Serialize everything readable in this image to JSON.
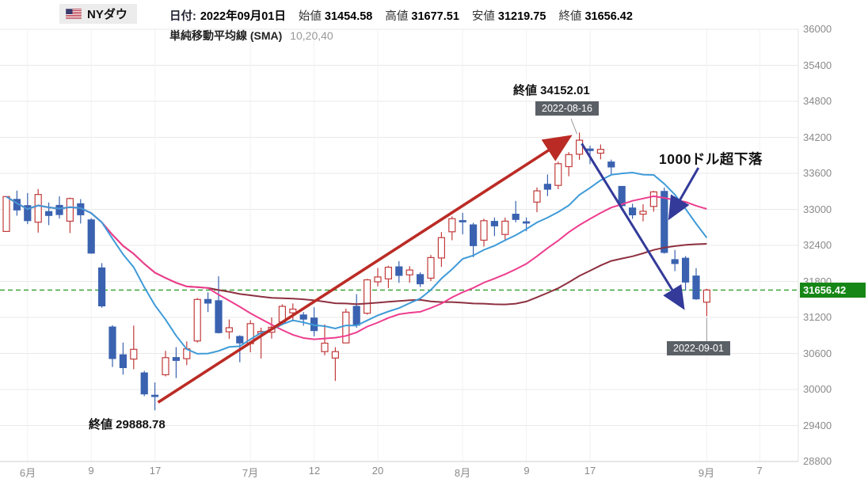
{
  "header": {
    "title": "NYダウ",
    "date_label": "日付:",
    "date_value": "2022年09月01日",
    "ohlc": [
      {
        "label": "始値",
        "value": "31454.58"
      },
      {
        "label": "高値",
        "value": "31677.51"
      },
      {
        "label": "安値",
        "value": "31219.75"
      },
      {
        "label": "終値",
        "value": "31656.42"
      }
    ],
    "sma_label": "単純移動平均線 (SMA)",
    "sma_values": "10,20,40"
  },
  "annotations": {
    "peak_label": "終値 34152.01",
    "peak_date": "2022-08-16",
    "bottom_label": "終値 29888.78",
    "last_date": "2022-09-01",
    "drop_note": "1000ドル超下落",
    "last_price_label": "31656.42"
  },
  "colors": {
    "up_candle": "#c23b3b",
    "down_candle": "#3a62b0",
    "sma10": "#3f9bd8",
    "sma20": "#ee3d8e",
    "sma40": "#8e3040",
    "last_price_line": "#2f9e2f",
    "last_price_badge_bg": "#168716",
    "date_badge_bg": "#5b6066",
    "up_arrow": "#bb2b25",
    "down_arrow": "#333a99",
    "grid": "#e8e8e8",
    "axis_text": "#8a8a8a"
  },
  "chart_data": {
    "type": "candlestick",
    "title": "NYダウ 日足 (2022年6月〜9月)",
    "ylim": [
      28800,
      36000
    ],
    "y_ticks": [
      36000,
      35400,
      34800,
      34200,
      33600,
      33000,
      32400,
      31800,
      31200,
      30600,
      30000,
      29400,
      28800
    ],
    "x_ticks": [
      {
        "label": "6月",
        "i": 2
      },
      {
        "label": "9",
        "i": 8
      },
      {
        "label": "17",
        "i": 14
      },
      {
        "label": "7月",
        "i": 23
      },
      {
        "label": "12",
        "i": 29
      },
      {
        "label": "20",
        "i": 35
      },
      {
        "label": "8月",
        "i": 43
      },
      {
        "label": "9",
        "i": 49
      },
      {
        "label": "17",
        "i": 55
      },
      {
        "label": "9月",
        "i": 66
      },
      {
        "label": "7",
        "i": 71
      }
    ],
    "sma_periods": [
      10,
      20,
      40
    ],
    "last_close_line": 31656.42,
    "grid": true,
    "legend": "none",
    "candle_fields": [
      "date",
      "open",
      "high",
      "low",
      "close"
    ],
    "candles": [
      [
        "05-27",
        32631,
        33213,
        32629,
        33213
      ],
      [
        "05-31",
        33166,
        33313,
        32894,
        32990
      ],
      [
        "06-01",
        33062,
        33272,
        32755,
        32813
      ],
      [
        "06-02",
        32787,
        33339,
        32612,
        33248
      ],
      [
        "06-03",
        32963,
        33115,
        32737,
        32899
      ],
      [
        "06-06",
        33066,
        33216,
        32848,
        32915
      ],
      [
        "06-07",
        32803,
        33196,
        32606,
        33180
      ],
      [
        "06-08",
        33093,
        33171,
        32764,
        32910
      ],
      [
        "06-09",
        32825,
        32855,
        32260,
        32272
      ],
      [
        "06-10",
        32024,
        32104,
        31361,
        31392
      ],
      [
        "06-13",
        31041,
        31071,
        30374,
        30516
      ],
      [
        "06-14",
        30578,
        30780,
        30248,
        30364
      ],
      [
        "06-15",
        30506,
        31064,
        30336,
        30668
      ],
      [
        "06-16",
        30276,
        30310,
        29888,
        29927
      ],
      [
        "06-17",
        29904,
        30117,
        29653,
        29888.78
      ],
      [
        "06-21",
        30245,
        30643,
        30218,
        30530
      ],
      [
        "06-22",
        30531,
        30704,
        30190,
        30483
      ],
      [
        "06-23",
        30514,
        30800,
        30405,
        30677
      ],
      [
        "06-24",
        30809,
        31525,
        30781,
        31500
      ],
      [
        "06-27",
        31499,
        31618,
        31290,
        31438
      ],
      [
        "06-28",
        31478,
        31885,
        30932,
        30946
      ],
      [
        "06-29",
        30962,
        31166,
        30843,
        31029
      ],
      [
        "06-30",
        30882,
        30903,
        30454,
        30775
      ],
      [
        "07-01",
        30763,
        31154,
        30620,
        31097
      ],
      [
        "07-05",
        30933,
        31030,
        30515,
        30967
      ],
      [
        "07-06",
        30954,
        31200,
        30848,
        31037
      ],
      [
        "07-07",
        31124,
        31418,
        31089,
        31384
      ],
      [
        "07-08",
        31276,
        31434,
        31134,
        31338
      ],
      [
        "07-11",
        31241,
        31290,
        31063,
        31173
      ],
      [
        "07-12",
        31190,
        31369,
        30886,
        30981
      ],
      [
        "07-13",
        30631,
        31082,
        30570,
        30772
      ],
      [
        "07-14",
        30523,
        30704,
        30143,
        30630
      ],
      [
        "07-15",
        30775,
        31345,
        30774,
        31288
      ],
      [
        "07-18",
        31384,
        31589,
        31029,
        31072
      ],
      [
        "07-19",
        31270,
        31842,
        31247,
        31827
      ],
      [
        "07-20",
        31793,
        32024,
        31718,
        31874
      ],
      [
        "07-21",
        31842,
        32061,
        31688,
        32036
      ],
      [
        "07-22",
        32042,
        32136,
        31776,
        31899
      ],
      [
        "07-25",
        31910,
        32054,
        31777,
        31990
      ],
      [
        "07-26",
        31914,
        31952,
        31708,
        31761
      ],
      [
        "07-27",
        31854,
        32240,
        31807,
        32197
      ],
      [
        "07-28",
        32190,
        32621,
        32042,
        32529
      ],
      [
        "07-29",
        32628,
        32884,
        32486,
        32845
      ],
      [
        "08-01",
        32813,
        32942,
        32584,
        32798
      ],
      [
        "08-02",
        32742,
        32776,
        32203,
        32396
      ],
      [
        "08-03",
        32487,
        32845,
        32380,
        32812
      ],
      [
        "08-04",
        32800,
        32866,
        32554,
        32726
      ],
      [
        "08-05",
        32581,
        32864,
        32482,
        32803
      ],
      [
        "08-08",
        32919,
        33141,
        32785,
        32832
      ],
      [
        "08-09",
        32793,
        32866,
        32636,
        32774
      ],
      [
        "08-10",
        33122,
        33365,
        32953,
        33309
      ],
      [
        "08-11",
        33418,
        33580,
        33222,
        33336
      ],
      [
        "08-12",
        33400,
        33794,
        33336,
        33761
      ],
      [
        "08-15",
        33712,
        33953,
        33553,
        33912
      ],
      [
        "08-16",
        33918,
        34281,
        33826,
        34152.01
      ],
      [
        "08-17",
        34006,
        34060,
        33754,
        33980
      ],
      [
        "08-18",
        33936,
        34081,
        33834,
        33999
      ],
      [
        "08-19",
        33788,
        33830,
        33564,
        33706
      ],
      [
        "08-22",
        33383,
        33386,
        32980,
        33063
      ],
      [
        "08-23",
        33022,
        33094,
        32842,
        32909
      ],
      [
        "08-24",
        32922,
        33084,
        32801,
        32969
      ],
      [
        "08-25",
        33049,
        33307,
        32963,
        33291
      ],
      [
        "08-26",
        33300,
        33364,
        32263,
        32283
      ],
      [
        "08-29",
        32163,
        32325,
        31972,
        32098
      ],
      [
        "08-30",
        32187,
        32222,
        31650,
        31790
      ],
      [
        "08-31",
        31890,
        32020,
        31493,
        31510
      ],
      [
        "09-01",
        31454.58,
        31677.51,
        31219.75,
        31656.42
      ]
    ]
  }
}
